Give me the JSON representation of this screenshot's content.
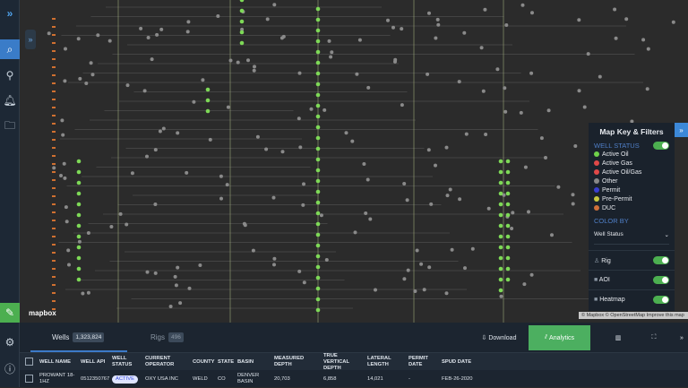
{
  "sidebar": {
    "items": [
      {
        "icon": "search-icon",
        "active": true
      },
      {
        "icon": "location-pin-icon"
      },
      {
        "icon": "bell-icon"
      },
      {
        "icon": "folder-icon"
      },
      {
        "icon": "notes-icon",
        "accent": "#4caf50"
      },
      {
        "icon": "gear-icon"
      },
      {
        "icon": "info-icon"
      }
    ]
  },
  "map": {
    "logo": "mapbox",
    "attribution": "© Mapbox © OpenStreetMap Improve this map",
    "colors": {
      "active_oil": "#7ed957",
      "background": "#2b2b2b"
    }
  },
  "legend": {
    "title": "Map Key & Filters",
    "well_status_label": "WELL STATUS",
    "statuses": [
      {
        "label": "Active Oil",
        "color": "#6fd14a"
      },
      {
        "label": "Active Gas",
        "color": "#e04848"
      },
      {
        "label": "Active Oil/Gas",
        "color": "#e04848"
      },
      {
        "label": "Other",
        "color": "#888888"
      },
      {
        "label": "Permit",
        "color": "#3a3fd0"
      },
      {
        "label": "Pre-Permit",
        "color": "#c8c840"
      },
      {
        "label": "DUC",
        "color": "#d0703a"
      }
    ],
    "color_by_label": "COLOR BY",
    "color_by_value": "Well Status",
    "layers": [
      {
        "label": "Rig",
        "on": true
      },
      {
        "label": "AOI",
        "on": true
      },
      {
        "label": "Heatmap",
        "on": true
      }
    ]
  },
  "panel": {
    "tabs": [
      {
        "label": "Wells",
        "count": "1,323,824"
      },
      {
        "label": "Rigs",
        "count": "496"
      }
    ],
    "download": "Download",
    "analytics": "Analytics",
    "columns": [
      "WELL NAME",
      "WELL API",
      "WELL STATUS",
      "CURRENT OPERATOR",
      "COUNTY",
      "STATE",
      "BASIN",
      "MEASURED DEPTH",
      "TRUE VERTICAL DEPTH",
      "LATERAL LENGTH",
      "PERMIT DATE",
      "SPUD DATE"
    ],
    "rows": [
      [
        "PROWANT 18-1HZ",
        "0512350767",
        "ACTIVE",
        "OXY USA INC",
        "WELD",
        "CO",
        "DENVER BASIN",
        "20,703",
        "6,858",
        "14,021",
        "-",
        "FEB-26-2020"
      ]
    ]
  }
}
